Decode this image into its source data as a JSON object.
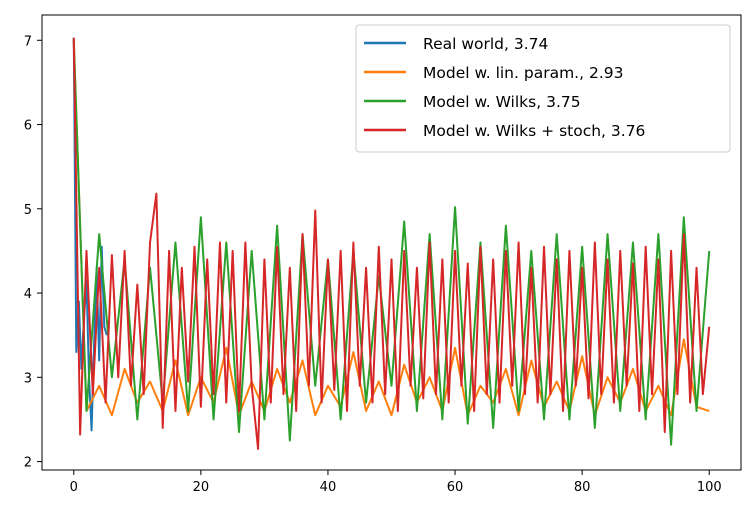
{
  "chart_data": {
    "type": "line",
    "title": "",
    "xlabel": "",
    "ylabel": "",
    "xlim": [
      -5,
      105
    ],
    "ylim": [
      1.9,
      7.3
    ],
    "grid": false,
    "legend_position": "top-right",
    "xticks": [
      0,
      20,
      40,
      60,
      80,
      100
    ],
    "xtick_labels": [
      "0",
      "20",
      "40",
      "60",
      "80",
      "100"
    ],
    "yticks": [
      2,
      3,
      4,
      5,
      6,
      7
    ],
    "ytick_labels": [
      "2",
      "3",
      "4",
      "5",
      "6",
      "7"
    ],
    "series": [
      {
        "name": "Real world, 3.74",
        "color": "#1f77b4",
        "x": [
          0,
          0.4,
          0.8,
          1.2,
          1.6,
          2.0,
          2.4,
          2.8,
          3.2,
          3.6,
          4.0,
          4.4,
          4.8,
          5.2
        ],
        "values": [
          7.03,
          3.3,
          3.9,
          3.1,
          3.7,
          4.15,
          3.0,
          2.37,
          3.4,
          4.3,
          3.2,
          4.55,
          3.6,
          3.5
        ]
      },
      {
        "name": "Model w. lin. param., 2.93",
        "color": "#ff7f0e",
        "x": [
          0,
          2,
          4,
          6,
          8,
          10,
          12,
          14,
          16,
          18,
          20,
          22,
          24,
          26,
          28,
          30,
          32,
          34,
          36,
          38,
          40,
          42,
          44,
          46,
          48,
          50,
          52,
          54,
          56,
          58,
          60,
          62,
          64,
          66,
          68,
          70,
          72,
          74,
          76,
          78,
          80,
          82,
          84,
          86,
          88,
          90,
          92,
          94,
          96,
          98,
          100
        ],
        "values": [
          7.0,
          2.6,
          2.9,
          2.55,
          3.1,
          2.7,
          2.95,
          2.6,
          3.2,
          2.55,
          3.0,
          2.7,
          3.35,
          2.55,
          2.95,
          2.6,
          3.1,
          2.7,
          3.2,
          2.55,
          2.9,
          2.65,
          3.3,
          2.6,
          2.95,
          2.55,
          3.15,
          2.7,
          3.0,
          2.6,
          3.35,
          2.55,
          2.9,
          2.7,
          3.1,
          2.55,
          3.2,
          2.65,
          2.95,
          2.6,
          3.25,
          2.55,
          3.0,
          2.7,
          3.1,
          2.6,
          2.9,
          2.55,
          3.45,
          2.65,
          2.6
        ]
      },
      {
        "name": "Model w. Wilks, 3.75",
        "color": "#2ca02c",
        "x": [
          0,
          2,
          4,
          6,
          8,
          10,
          12,
          14,
          16,
          18,
          20,
          22,
          24,
          26,
          28,
          30,
          32,
          34,
          36,
          38,
          40,
          42,
          44,
          46,
          48,
          50,
          52,
          54,
          56,
          58,
          60,
          62,
          64,
          66,
          68,
          70,
          72,
          74,
          76,
          78,
          80,
          82,
          84,
          86,
          88,
          90,
          92,
          94,
          96,
          98,
          100
        ],
        "values": [
          7.0,
          2.6,
          4.7,
          3.0,
          4.4,
          2.5,
          4.3,
          2.7,
          4.6,
          2.6,
          4.9,
          2.5,
          4.6,
          2.35,
          4.5,
          2.5,
          4.8,
          2.25,
          4.7,
          2.9,
          4.4,
          2.5,
          4.5,
          2.7,
          4.2,
          2.9,
          4.85,
          2.6,
          4.7,
          2.5,
          5.02,
          2.45,
          4.6,
          2.4,
          4.8,
          2.6,
          4.5,
          2.5,
          4.7,
          2.5,
          4.55,
          2.4,
          4.7,
          2.6,
          4.6,
          2.5,
          4.7,
          2.2,
          4.9,
          2.6,
          4.5
        ]
      },
      {
        "name": "Model w. Wilks + stoch, 3.76",
        "color": "#d62728",
        "x": [
          0,
          1,
          2,
          3,
          4,
          5,
          6,
          7,
          8,
          9,
          10,
          11,
          12,
          13,
          14,
          15,
          16,
          17,
          18,
          19,
          20,
          21,
          22,
          23,
          24,
          25,
          26,
          27,
          28,
          29,
          30,
          31,
          32,
          33,
          34,
          35,
          36,
          37,
          38,
          39,
          40,
          41,
          42,
          43,
          44,
          45,
          46,
          47,
          48,
          49,
          50,
          51,
          52,
          53,
          54,
          55,
          56,
          57,
          58,
          59,
          60,
          61,
          62,
          63,
          64,
          65,
          66,
          67,
          68,
          69,
          70,
          71,
          72,
          73,
          74,
          75,
          76,
          77,
          78,
          79,
          80,
          81,
          82,
          83,
          84,
          85,
          86,
          87,
          88,
          89,
          90,
          91,
          92,
          93,
          94,
          95,
          96,
          97,
          98,
          99,
          100
        ],
        "values": [
          7.03,
          2.32,
          4.5,
          2.8,
          4.3,
          2.7,
          4.45,
          3.0,
          4.5,
          2.9,
          4.1,
          2.8,
          4.6,
          5.18,
          2.4,
          4.5,
          2.6,
          4.3,
          2.95,
          4.55,
          2.65,
          4.4,
          2.8,
          4.6,
          2.7,
          4.5,
          2.6,
          4.6,
          2.9,
          2.15,
          4.4,
          2.7,
          4.55,
          2.8,
          4.3,
          2.6,
          4.7,
          2.9,
          4.98,
          2.7,
          4.4,
          2.85,
          4.5,
          2.6,
          4.6,
          2.9,
          4.3,
          2.7,
          4.55,
          2.8,
          4.4,
          2.6,
          4.5,
          2.9,
          4.3,
          2.75,
          4.6,
          2.8,
          4.4,
          2.7,
          4.5,
          2.9,
          4.35,
          2.6,
          4.55,
          2.8,
          4.4,
          2.7,
          4.5,
          2.9,
          4.6,
          2.8,
          4.3,
          2.7,
          4.55,
          2.8,
          4.4,
          2.6,
          4.5,
          2.9,
          4.3,
          2.75,
          4.6,
          2.8,
          4.4,
          2.7,
          4.5,
          2.9,
          4.35,
          2.6,
          4.55,
          2.8,
          4.4,
          2.35,
          4.5,
          2.8,
          4.7,
          2.7,
          4.3,
          2.8,
          3.6
        ]
      }
    ]
  }
}
